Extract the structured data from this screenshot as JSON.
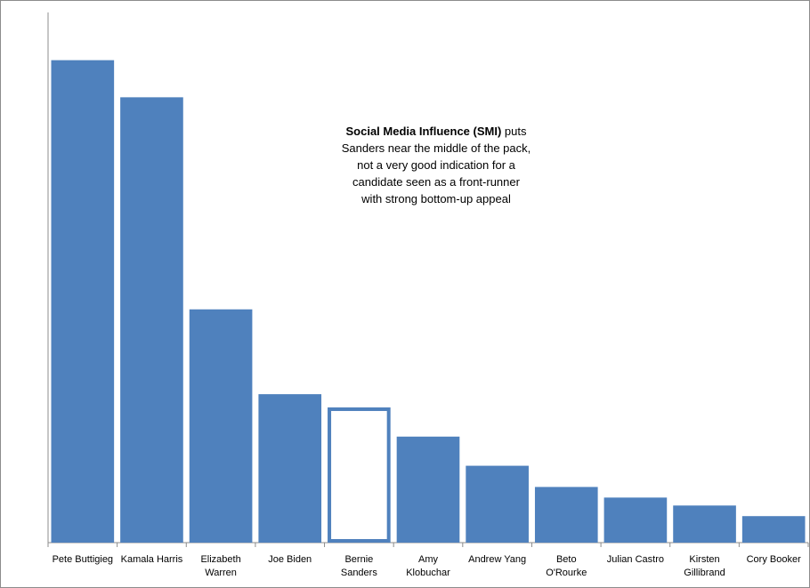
{
  "chart_data": {
    "type": "bar",
    "title": "",
    "xlabel": "",
    "ylabel": "",
    "categories": [
      "Pete Buttigieg",
      "Kamala Harris",
      "Elizabeth Warren",
      "Joe Biden",
      "Bernie Sanders",
      "Amy Klobuchar",
      "Andrew Yang",
      "Beto O'Rourke",
      "Julian Castro",
      "Kirsten Gillibrand",
      "Cory Booker"
    ],
    "category_lines": [
      [
        "Pete Buttigieg"
      ],
      [
        "Kamala Harris"
      ],
      [
        "Elizabeth",
        "Warren"
      ],
      [
        "Joe Biden"
      ],
      [
        "Bernie",
        "Sanders"
      ],
      [
        "Amy",
        "Klobuchar"
      ],
      [
        "Andrew Yang"
      ],
      [
        "Beto",
        "O'Rourke"
      ],
      [
        "Julian Castro"
      ],
      [
        "Kirsten",
        "Gillibrand"
      ],
      [
        "Cory Booker"
      ]
    ],
    "values": [
      91,
      84,
      44,
      28,
      25.5,
      20,
      14.5,
      10.5,
      8.5,
      7,
      5
    ],
    "highlight_index": 4,
    "ylim": [
      0,
      100
    ],
    "grid": false,
    "legend": "none",
    "colors": {
      "bar": "#4f81bd",
      "highlight_fill": "#ffffff",
      "highlight_stroke": "#4f81bd",
      "axis": "#8c8c8c"
    }
  },
  "annotation": {
    "bold": "Social Media Influence (SMI)",
    "rest": "puts",
    "lines": [
      "Sanders near the middle of the pack,",
      "not a very good indication for a",
      "candidate seen as a front-runner",
      "with strong bottom-up appeal"
    ]
  }
}
